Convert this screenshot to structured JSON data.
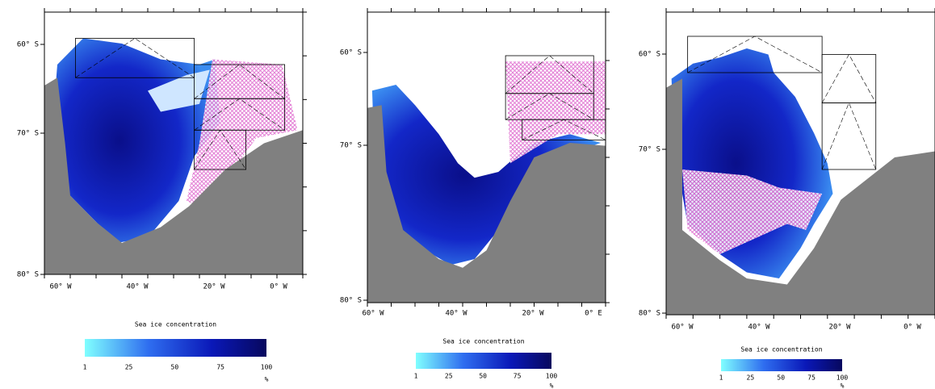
{
  "panels": [
    {
      "lat_labels": [
        "60° S",
        "70° S",
        "80° S"
      ],
      "lon_labels": [
        "60° W",
        "40° W",
        "20° W",
        "0° W"
      ],
      "colorbar": {
        "title": "Sea ice concentration",
        "ticks": [
          1,
          25,
          50,
          75,
          100
        ],
        "unit": "%"
      }
    },
    {
      "lat_labels": [
        "60° S",
        "70° S",
        "80° S"
      ],
      "lon_labels": [
        "60° W",
        "40° W",
        "20° W",
        "0° E"
      ],
      "colorbar": {
        "title": "Sea ice concentration",
        "ticks": [
          1,
          25,
          50,
          75,
          100
        ],
        "unit": "%"
      }
    },
    {
      "lat_labels": [
        "60° S",
        "70° S",
        "80° S"
      ],
      "lon_labels": [
        "60° W",
        "40° W",
        "20° W",
        "0° W"
      ],
      "colorbar": {
        "title": "Sea ice concentration",
        "ticks": [
          1,
          25,
          50,
          75,
          100
        ],
        "unit": "%"
      }
    }
  ]
}
